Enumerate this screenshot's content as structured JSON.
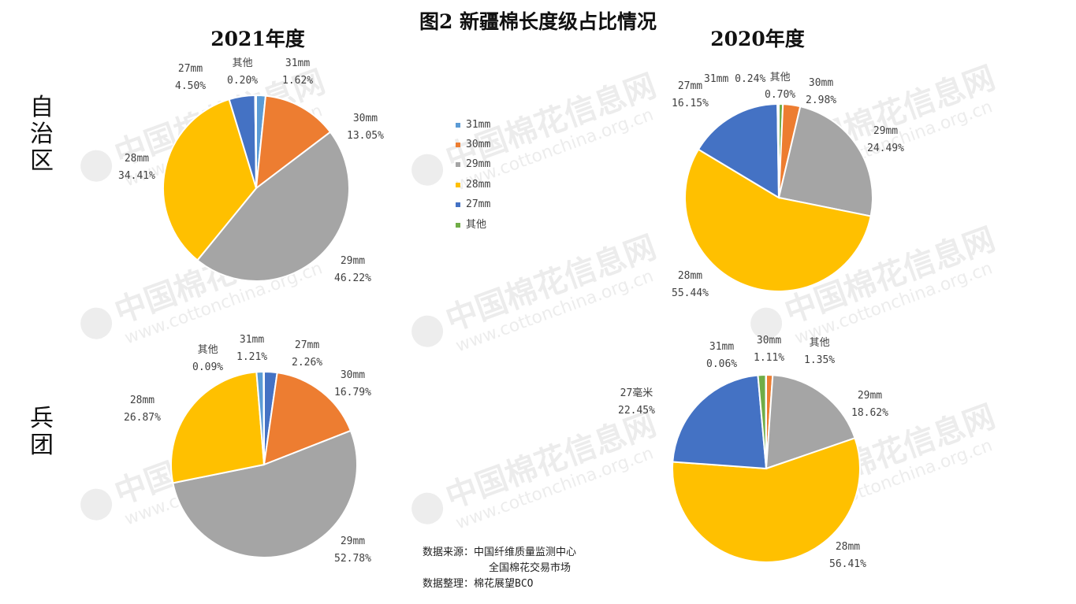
{
  "title": "图2 新疆棉长度级占比情况",
  "watermark": {
    "text_cn": "中国棉花信息网",
    "text_url": "www.cottonchina.org.cn"
  },
  "row_labels": [
    "自治区",
    "兵团"
  ],
  "column_labels": [
    "2021年度",
    "2020年度"
  ],
  "legend": {
    "items": [
      {
        "label": "31mm",
        "color": "#5B9BD5"
      },
      {
        "label": "30mm",
        "color": "#ED7D31"
      },
      {
        "label": "29mm",
        "color": "#A5A5A5"
      },
      {
        "label": "28mm",
        "color": "#FFC000"
      },
      {
        "label": "27mm",
        "color": "#4472C4"
      },
      {
        "label": "其他",
        "color": "#70AD47"
      }
    ]
  },
  "source": {
    "line1": "数据来源：中国纤维质量监测中心",
    "line2": "全国棉花交易市场",
    "line3": "数据整理：棉花展望BCO"
  },
  "chart_data": [
    {
      "type": "pie",
      "row": "自治区",
      "column": "2021年度",
      "slices": [
        {
          "name": "31mm",
          "value": 1.62,
          "label": "1.62%",
          "color": "#5B9BD5"
        },
        {
          "name": "30mm",
          "value": 13.05,
          "label": "13.05%",
          "color": "#ED7D31"
        },
        {
          "name": "29mm",
          "value": 46.22,
          "label": "46.22%",
          "color": "#A5A5A5"
        },
        {
          "name": "28mm",
          "value": 34.41,
          "label": "34.41%",
          "color": "#FFC000"
        },
        {
          "name": "27mm",
          "value": 4.5,
          "label": "4.50%",
          "color": "#4472C4"
        },
        {
          "name": "其他",
          "value": 0.2,
          "label": "0.20%",
          "color": "#70AD47"
        }
      ]
    },
    {
      "type": "pie",
      "row": "自治区",
      "column": "2020年度",
      "slices": [
        {
          "name": "其他",
          "value": 0.7,
          "label": "0.70%",
          "color": "#70AD47"
        },
        {
          "name": "30mm",
          "value": 2.98,
          "label": "2.98%",
          "color": "#ED7D31"
        },
        {
          "name": "29mm",
          "value": 24.49,
          "label": "24.49%",
          "color": "#A5A5A5"
        },
        {
          "name": "28mm",
          "value": 55.44,
          "label": "55.44%",
          "color": "#FFC000"
        },
        {
          "name": "27mm",
          "value": 16.15,
          "label": "16.15%",
          "color": "#4472C4"
        },
        {
          "name": "31mm",
          "value": 0.24,
          "label": "0.24%",
          "color": "#5B9BD5"
        }
      ]
    },
    {
      "type": "pie",
      "row": "兵团",
      "column": "2021年度",
      "slices": [
        {
          "name": "27mm",
          "value": 2.26,
          "label": "2.26%",
          "color": "#4472C4"
        },
        {
          "name": "30mm",
          "value": 16.79,
          "label": "16.79%",
          "color": "#ED7D31"
        },
        {
          "name": "29mm",
          "value": 52.78,
          "label": "52.78%",
          "color": "#A5A5A5"
        },
        {
          "name": "28mm",
          "value": 26.87,
          "label": "26.87%",
          "color": "#FFC000"
        },
        {
          "name": "31mm",
          "value": 1.21,
          "label": "1.21%",
          "color": "#5B9BD5"
        },
        {
          "name": "其他",
          "value": 0.09,
          "label": "0.09%",
          "color": "#70AD47"
        }
      ]
    },
    {
      "type": "pie",
      "row": "兵团",
      "column": "2020年度",
      "slices": [
        {
          "name": "30mm",
          "value": 1.11,
          "label": "1.11%",
          "color": "#ED7D31"
        },
        {
          "name": "29mm",
          "value": 18.62,
          "label": "18.62%",
          "color": "#A5A5A5"
        },
        {
          "name": "28mm",
          "value": 56.41,
          "label": "56.41%",
          "color": "#FFC000"
        },
        {
          "name": "27毫米",
          "value": 22.45,
          "label": "22.45%",
          "color": "#4472C4"
        },
        {
          "name": "其他",
          "value": 1.35,
          "label": "1.35%",
          "color": "#70AD47"
        },
        {
          "name": "31mm",
          "value": 0.06,
          "label": "0.06%",
          "color": "#5B9BD5"
        }
      ]
    }
  ]
}
